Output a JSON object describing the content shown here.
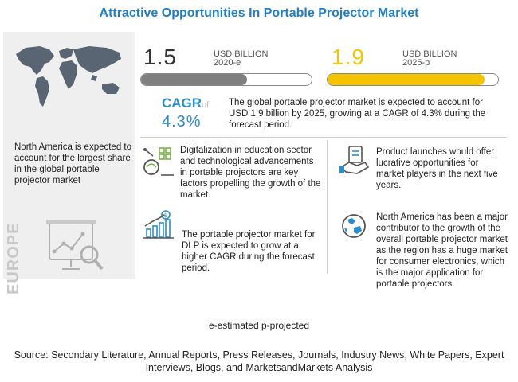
{
  "title": "Attractive Opportunities In Portable Projector Market",
  "stats": [
    {
      "value": "1.5",
      "unit_line1": "USD BILLION",
      "unit_line2": "2020-e",
      "bar_fill_fraction": 0.62,
      "bar_color": "#7f7f7f"
    },
    {
      "value": "1.9",
      "unit_line1": "USD BILLION",
      "unit_line2": "2025-p",
      "bar_fill_fraction": 0.92,
      "bar_color": "#f5c400"
    }
  ],
  "cagr": {
    "label": "CAGR",
    "of": "of",
    "value": "4.3%",
    "description": "The global portable projector market is expected to account for USD 1.9 billion by 2025, growing at a CAGR of 4.3% during the forecast period."
  },
  "left_panel": {
    "text": "North America is expected to account for the largest share in the global portable projector market",
    "region_label": "EUROPE"
  },
  "facts": [
    {
      "icon": "digitalization-icon",
      "text": "Digitalization in education sector and technological advancements in portable projectors are key factors propelling the growth of the market."
    },
    {
      "icon": "product-launch-icon",
      "text": "Product launches would offer lucrative opportunities for market players in the next five years."
    },
    {
      "icon": "growth-chart-icon",
      "text": "The portable projector market for DLP is expected to grow at a higher CAGR during the forecast period."
    },
    {
      "icon": "globe-icon",
      "text": "North America has been a major contributor to the growth of the overall portable projector market as the region has a huge market for consumer electronics, which is the major application for portable projectors."
    }
  ],
  "footnote": "e-estimated p-projected",
  "source": "Source: Secondary Literature, Annual Reports, Press Releases, Journals, Industry News, White Papers, Expert Interviews, Blogs, and MarketsandMarkets Analysis",
  "colors": {
    "title": "#1f7fc4",
    "accent_blue": "#2c8ec9",
    "yellow": "#f5c400",
    "grey_bar": "#7f7f7f"
  }
}
